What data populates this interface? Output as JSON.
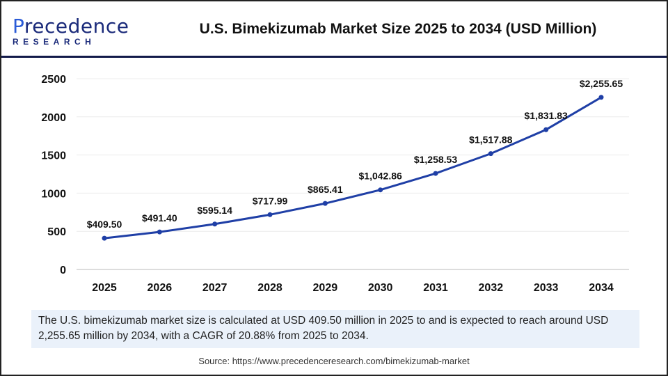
{
  "brand": {
    "logo_line1": "Precedence",
    "logo_line2": "RESEARCH"
  },
  "title": "U.S. Bimekizumab Market Size 2025 to 2034 (USD Million)",
  "note": "The U.S. bimekizumab market size is calculated at USD 409.50 million in 2025 to and is expected to reach around USD 2,255.65 million by 2034, with a CAGR of 20.88% from 2025 to 2034.",
  "source": "Source: https://www.precedenceresearch.com/bimekizumab-market",
  "chart_data": {
    "type": "line",
    "title": "U.S. Bimekizumab Market Size 2025 to 2034 (USD Million)",
    "categories": [
      "2025",
      "2026",
      "2027",
      "2028",
      "2029",
      "2030",
      "2031",
      "2032",
      "2033",
      "2034"
    ],
    "values": [
      409.5,
      491.4,
      595.14,
      717.99,
      865.41,
      1042.86,
      1258.53,
      1517.88,
      1831.83,
      2255.65
    ],
    "data_labels": [
      "$409.50",
      "$491.40",
      "$595.14",
      "$717.99",
      "$865.41",
      "$1,042.86",
      "$1,258.53",
      "$1,517.88",
      "$1,831.83",
      "$2,255.65"
    ],
    "ylim": [
      0,
      2500
    ],
    "yticks": [
      "0",
      "500",
      "1000",
      "1500",
      "2000",
      "2500"
    ],
    "grid": true,
    "line_color": "#1f3fa6"
  }
}
